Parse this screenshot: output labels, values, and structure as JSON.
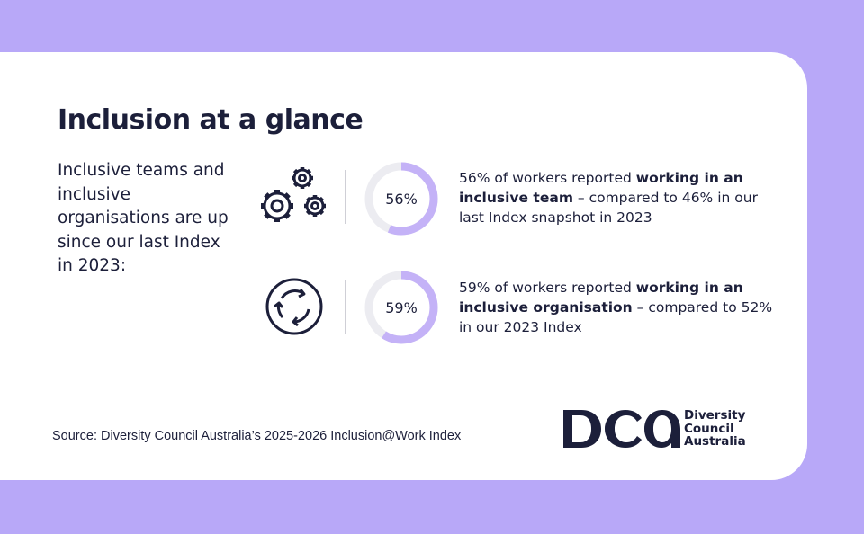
{
  "title": "Inclusion at a glance",
  "intro": "Inclusive teams and inclusive organisations are up since our last Index in 2023:",
  "stats": [
    {
      "icon": "gears-icon",
      "percent_label": "56%",
      "percent": 56,
      "text_before": "56% of workers reported ",
      "text_bold": "working in an inclusive team",
      "text_after": " – compared to 46% in our last Index snapshot in 2023"
    },
    {
      "icon": "circular-arrows-icon",
      "percent_label": "59%",
      "percent": 59,
      "text_before": "59% of workers reported ",
      "text_bold": "working in an inclusive organisation",
      "text_after": " – compared to 52% in our 2023 Index"
    }
  ],
  "source": "Source: Diversity Council Australia’s 2025-2026 Inclusion@Work Index",
  "logo": {
    "monogram": "DCA",
    "line1": "Diversity",
    "line2": "Council",
    "line3": "Australia"
  },
  "colors": {
    "background": "#b8a8f8",
    "accent": "#c4b2f7",
    "track": "#ececf1",
    "text": "#1c1f3a"
  }
}
